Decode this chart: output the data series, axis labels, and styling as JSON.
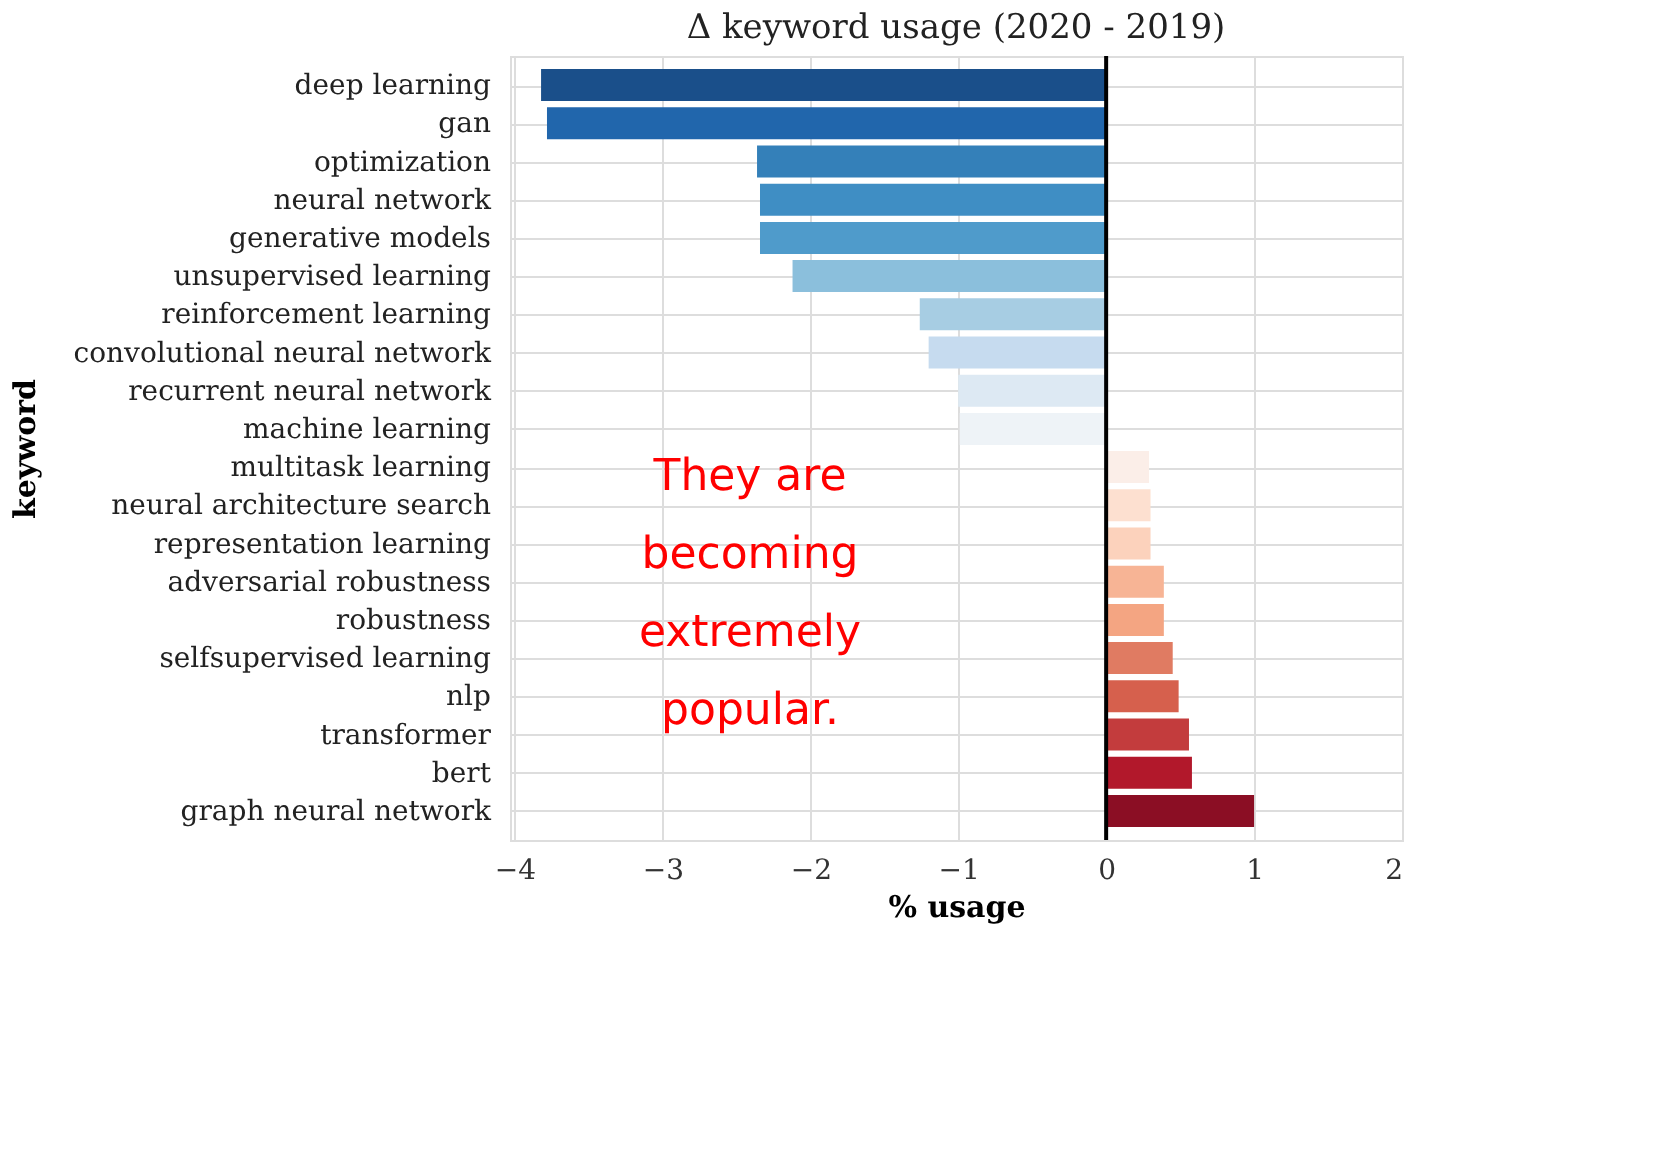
{
  "chart_data": {
    "type": "bar",
    "orientation": "horizontal",
    "title": "Δ keyword usage (2020 - 2019)",
    "xlabel": "% usage",
    "ylabel": "keyword",
    "categories": [
      "deep learning",
      "gan",
      "optimization",
      "neural network",
      "generative models",
      "unsupervised learning",
      "reinforcement learning",
      "convolutional neural network",
      "recurrent neural network",
      "machine learning",
      "multitask learning",
      "neural architecture search",
      "representation learning",
      "adversarial robustness",
      "robustness",
      "selfsupervised learning",
      "nlp",
      "transformer",
      "bert",
      "graph neural network"
    ],
    "values": [
      -3.82,
      -3.78,
      -2.36,
      -2.34,
      -2.34,
      -2.12,
      -1.26,
      -1.2,
      -1.0,
      -0.99,
      0.29,
      0.3,
      0.3,
      0.39,
      0.39,
      0.45,
      0.49,
      0.56,
      0.58,
      1.0
    ],
    "colors": [
      "#1a4f8a",
      "#2166ac",
      "#3480b9",
      "#3f8ec4",
      "#4f9bcb",
      "#8bbfdc",
      "#a7cde3",
      "#c6dbef",
      "#dde9f3",
      "#eef3f7",
      "#fbeee8",
      "#fde0d0",
      "#fcd2bc",
      "#f7b495",
      "#f4a582",
      "#e07b62",
      "#d6604d",
      "#c33c3d",
      "#b2182b",
      "#8b0e24"
    ],
    "xlim": [
      -4.03,
      2.0
    ],
    "xticks": [
      -4,
      -3,
      -2,
      -1,
      0,
      1,
      2
    ],
    "grid": true,
    "ref_lines": [
      {
        "axis": "x",
        "value": 0,
        "color": "#000000"
      }
    ],
    "annotations": [
      "They are\nbecoming\nextremely\npopular."
    ]
  }
}
